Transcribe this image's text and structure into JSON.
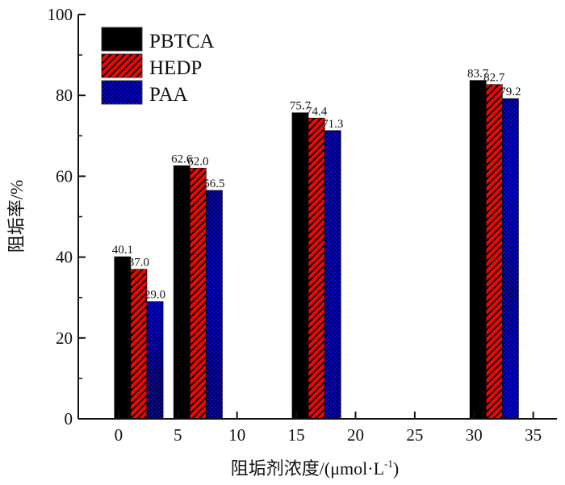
{
  "chart_data": {
    "type": "bar",
    "title": "",
    "xlabel": "阻垢剂浓度/(μmol·L⁻¹)",
    "xlabel_main": "阻垢剂浓度/(μmol·L",
    "xlabel_sup": "-1",
    "xlabel_close": ")",
    "ylabel": "阻垢率/%",
    "xlim": [
      -3.4,
      37
    ],
    "ylim": [
      0,
      100
    ],
    "xticks": [
      0,
      5,
      10,
      15,
      20,
      25,
      30,
      35
    ],
    "yticks": [
      0,
      20,
      40,
      60,
      80,
      100
    ],
    "grid": false,
    "legend_position": "top-left",
    "categories": [
      0,
      5,
      15,
      30
    ],
    "series": [
      {
        "name": "PBTCA",
        "color": "#000000",
        "pattern": "solid",
        "values": [
          40.1,
          62.6,
          75.7,
          83.7
        ],
        "labels": [
          "40.1",
          "62.6",
          "75.7",
          "83.7"
        ]
      },
      {
        "name": "HEDP",
        "color": "#ff0000",
        "pattern": "diagonal-hatch",
        "values": [
          37.0,
          62.0,
          74.4,
          82.7
        ],
        "labels": [
          "37.0",
          "62.0",
          "74.4",
          "82.7"
        ]
      },
      {
        "name": "PAA",
        "color": "#0000ff",
        "pattern": "crosshatch",
        "values": [
          29.0,
          56.5,
          71.3,
          79.2
        ],
        "labels": [
          "29.0",
          "56.5",
          "71.3",
          "79.2"
        ]
      }
    ]
  }
}
